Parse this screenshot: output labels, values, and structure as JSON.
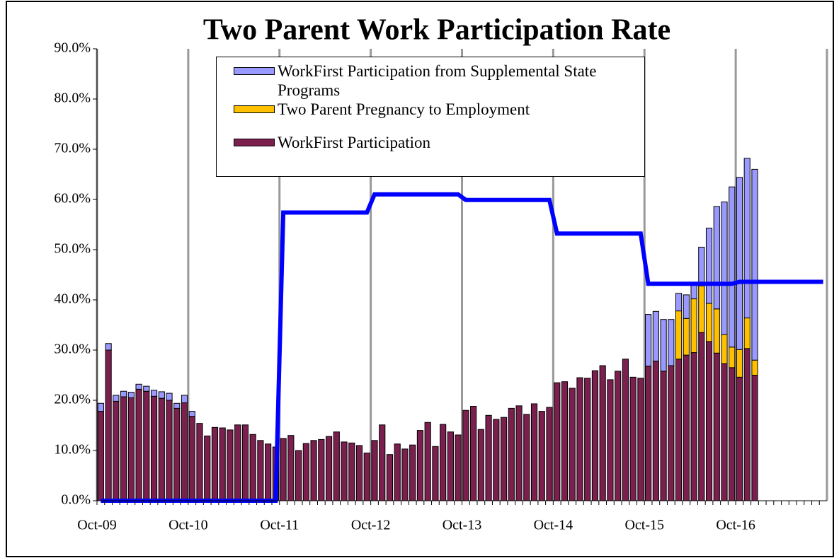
{
  "chart_data": {
    "type": "bar",
    "stacked": true,
    "title": "Two Parent Work Participation Rate",
    "categories": [
      "Oct-09",
      null,
      null,
      null,
      null,
      null,
      null,
      null,
      null,
      null,
      null,
      null,
      "Oct-10",
      null,
      null,
      null,
      null,
      null,
      null,
      null,
      null,
      null,
      null,
      null,
      "Oct-11",
      null,
      null,
      null,
      null,
      null,
      null,
      null,
      null,
      null,
      null,
      null,
      "Oct-12",
      null,
      null,
      null,
      null,
      null,
      null,
      null,
      null,
      null,
      null,
      null,
      "Oct-13",
      null,
      null,
      null,
      null,
      null,
      null,
      null,
      null,
      null,
      null,
      null,
      "Oct-14",
      null,
      null,
      null,
      null,
      null,
      null,
      null,
      null,
      null,
      null,
      null,
      "Oct-15",
      null,
      null,
      null,
      null,
      null,
      null,
      null,
      null,
      null,
      null,
      null,
      "Oct-16",
      null,
      null,
      null,
      null,
      null,
      null,
      null,
      null,
      null,
      null,
      null
    ],
    "series": [
      {
        "name": "WorkFirst Participation",
        "color": "#7b1f4f",
        "values": [
          17.8,
          30.0,
          19.8,
          20.7,
          20.5,
          22.2,
          21.8,
          20.8,
          20.4,
          20.0,
          18.4,
          19.5,
          16.8,
          15.4,
          12.9,
          14.6,
          14.5,
          14.1,
          15.1,
          15.1,
          13.2,
          12.0,
          11.3,
          10.7,
          12.4,
          13.0,
          10.0,
          11.4,
          12.0,
          12.2,
          12.8,
          13.7,
          11.7,
          11.5,
          11.0,
          9.5,
          12.0,
          15.1,
          9.2,
          11.3,
          10.3,
          11.1,
          14.0,
          15.6,
          10.8,
          15.2,
          13.7,
          13.1,
          18.0,
          18.8,
          14.2,
          17.0,
          16.2,
          16.6,
          18.4,
          18.9,
          17.2,
          19.3,
          17.8,
          18.6,
          23.5,
          23.7,
          22.4,
          24.5,
          24.4,
          25.9,
          26.9,
          24.1,
          25.8,
          28.2,
          24.6,
          24.4,
          26.8,
          27.8,
          25.8,
          26.9,
          28.2,
          29.0,
          29.5,
          33.5,
          31.7,
          29.4,
          27.3,
          26.5,
          24.6,
          30.3,
          25.0,
          null,
          null,
          null,
          null,
          null,
          null,
          null,
          null,
          null
        ]
      },
      {
        "name": "Two Parent Pregnancy to Employment",
        "color": "#ffc000",
        "values": [
          0,
          0,
          0,
          0,
          0,
          0,
          0,
          0,
          0,
          0,
          0,
          0,
          0,
          0,
          0,
          0,
          0,
          0,
          0,
          0,
          0,
          0,
          0,
          0,
          0,
          0,
          0,
          0,
          0,
          0,
          0,
          0,
          0,
          0,
          0,
          0,
          0,
          0,
          0,
          0,
          0,
          0,
          0,
          0,
          0,
          0,
          0,
          0,
          0,
          0,
          0,
          0,
          0,
          0,
          0,
          0,
          0,
          0,
          0,
          0,
          0,
          0,
          0,
          0,
          0,
          0,
          0,
          0,
          0,
          0,
          0,
          0,
          0,
          0,
          0,
          0,
          9.6,
          7.3,
          10.7,
          9.3,
          7.6,
          8.8,
          5.8,
          4.1,
          5.5,
          6.1,
          3.0,
          null,
          null,
          null,
          null,
          null,
          null,
          null,
          null,
          null
        ]
      },
      {
        "name": "WorkFirst Participation from Supplemental State Programs",
        "color": "#9999ff",
        "values": [
          1.6,
          1.3,
          1.2,
          1.1,
          1.1,
          1.0,
          1.0,
          1.2,
          1.3,
          1.4,
          1.0,
          1.5,
          1.0,
          0,
          0,
          0,
          0,
          0,
          0,
          0,
          0,
          0,
          0,
          0,
          0,
          0,
          0,
          0,
          0,
          0,
          0,
          0,
          0,
          0,
          0,
          0,
          0,
          0,
          0,
          0,
          0,
          0,
          0,
          0,
          0,
          0,
          0,
          0,
          0,
          0,
          0,
          0,
          0,
          0,
          0,
          0,
          0,
          0,
          0,
          0,
          0,
          0,
          0,
          0,
          0,
          0,
          0,
          0,
          0,
          0,
          0,
          0,
          10.3,
          9.9,
          10.3,
          9.2,
          3.5,
          4.7,
          2.8,
          7.7,
          15.0,
          20.4,
          26.4,
          31.9,
          34.3,
          31.8,
          38.0,
          null,
          null,
          null,
          null,
          null,
          null,
          null,
          null,
          null
        ]
      }
    ],
    "line": {
      "color": "#0000ff",
      "values": [
        0,
        0,
        0,
        0,
        0,
        0,
        0,
        0,
        0,
        0,
        0,
        0,
        0,
        0,
        0,
        0,
        0,
        0,
        0,
        0,
        0,
        0,
        0,
        0,
        57.4,
        57.4,
        57.4,
        57.4,
        57.4,
        57.4,
        57.4,
        57.4,
        57.4,
        57.4,
        57.4,
        57.4,
        61.0,
        61.0,
        61.0,
        61.0,
        61.0,
        61.0,
        61.0,
        61.0,
        61.0,
        61.0,
        61.0,
        61.0,
        59.9,
        59.9,
        59.9,
        59.9,
        59.9,
        59.9,
        59.9,
        59.9,
        59.9,
        59.9,
        59.9,
        59.9,
        53.2,
        53.2,
        53.2,
        53.2,
        53.2,
        53.2,
        53.2,
        53.2,
        53.2,
        53.2,
        53.2,
        53.2,
        43.2,
        43.2,
        43.2,
        43.2,
        43.2,
        43.2,
        43.2,
        43.2,
        43.2,
        43.2,
        43.2,
        43.2,
        43.6,
        43.6,
        43.6,
        43.6,
        43.6,
        43.6,
        43.6,
        43.6,
        43.6,
        43.6,
        43.6,
        43.6
      ]
    },
    "ylim": [
      0,
      90
    ],
    "yticks": [
      {
        "value": 0,
        "label": "0.0%"
      },
      {
        "value": 10,
        "label": "10.0%"
      },
      {
        "value": 20,
        "label": "20.0%"
      },
      {
        "value": 30,
        "label": "30.0%"
      },
      {
        "value": 40,
        "label": "40.0%"
      },
      {
        "value": 50,
        "label": "50.0%"
      },
      {
        "value": 60,
        "label": "60.0%"
      },
      {
        "value": 70,
        "label": "70.0%"
      },
      {
        "value": 80,
        "label": "80.0%"
      },
      {
        "value": 90,
        "label": "90.0%"
      }
    ],
    "grid": "x",
    "legend": "top"
  }
}
